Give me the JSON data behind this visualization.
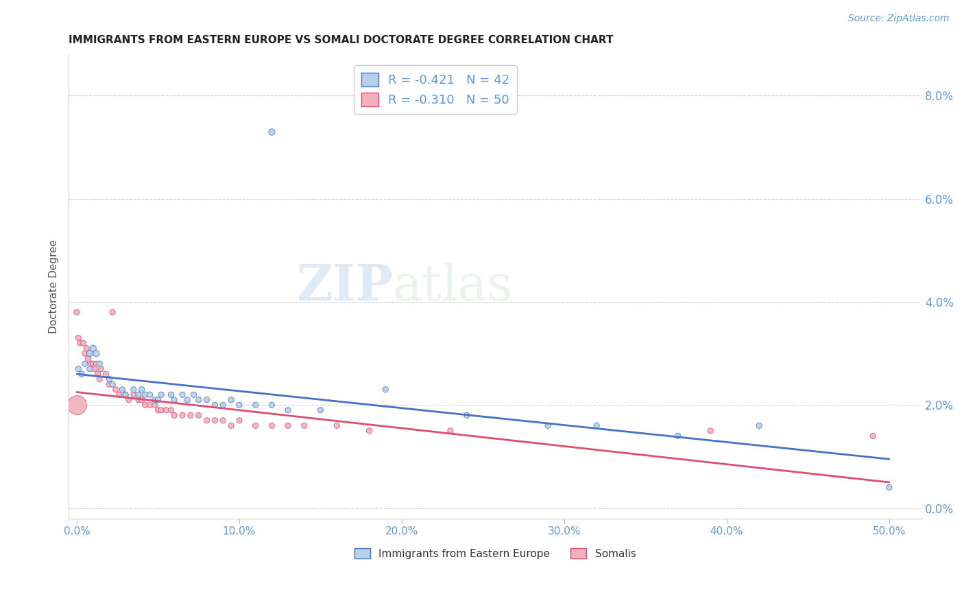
{
  "title": "IMMIGRANTS FROM EASTERN EUROPE VS SOMALI DOCTORATE DEGREE CORRELATION CHART",
  "source": "Source: ZipAtlas.com",
  "xlabel_ticks": [
    "0.0%",
    "10.0%",
    "20.0%",
    "30.0%",
    "40.0%",
    "50.0%"
  ],
  "xlabel_vals": [
    0.0,
    0.1,
    0.2,
    0.3,
    0.4,
    0.5
  ],
  "ylabel": "Doctorate Degree",
  "ylabel_ticks": [
    "0.0%",
    "2.0%",
    "4.0%",
    "6.0%",
    "8.0%"
  ],
  "ylabel_vals": [
    0.0,
    0.02,
    0.04,
    0.06,
    0.08
  ],
  "ylim": [
    -0.002,
    0.088
  ],
  "xlim": [
    -0.005,
    0.52
  ],
  "watermark_zip": "ZIP",
  "watermark_atlas": "atlas",
  "legend_blue_R": "-0.421",
  "legend_blue_N": "42",
  "legend_pink_R": "-0.310",
  "legend_pink_N": "50",
  "blue_color": "#b8d0e8",
  "pink_color": "#f0b0be",
  "line_blue": "#4472c4",
  "line_pink": "#d94f6e",
  "legend_label_blue": "Immigrants from Eastern Europe",
  "legend_label_pink": "Somalis",
  "blue_scatter": [
    [
      0.001,
      0.027
    ],
    [
      0.003,
      0.026
    ],
    [
      0.005,
      0.028
    ],
    [
      0.008,
      0.03
    ],
    [
      0.008,
      0.027
    ],
    [
      0.01,
      0.031
    ],
    [
      0.012,
      0.03
    ],
    [
      0.014,
      0.028
    ],
    [
      0.02,
      0.025
    ],
    [
      0.022,
      0.024
    ],
    [
      0.028,
      0.023
    ],
    [
      0.03,
      0.022
    ],
    [
      0.035,
      0.023
    ],
    [
      0.038,
      0.022
    ],
    [
      0.04,
      0.023
    ],
    [
      0.042,
      0.022
    ],
    [
      0.045,
      0.022
    ],
    [
      0.048,
      0.021
    ],
    [
      0.05,
      0.021
    ],
    [
      0.052,
      0.022
    ],
    [
      0.058,
      0.022
    ],
    [
      0.06,
      0.021
    ],
    [
      0.065,
      0.022
    ],
    [
      0.068,
      0.021
    ],
    [
      0.072,
      0.022
    ],
    [
      0.075,
      0.021
    ],
    [
      0.08,
      0.021
    ],
    [
      0.085,
      0.02
    ],
    [
      0.09,
      0.02
    ],
    [
      0.095,
      0.021
    ],
    [
      0.1,
      0.02
    ],
    [
      0.11,
      0.02
    ],
    [
      0.12,
      0.02
    ],
    [
      0.13,
      0.019
    ],
    [
      0.15,
      0.019
    ],
    [
      0.19,
      0.023
    ],
    [
      0.24,
      0.018
    ],
    [
      0.29,
      0.016
    ],
    [
      0.32,
      0.016
    ],
    [
      0.37,
      0.014
    ],
    [
      0.42,
      0.016
    ],
    [
      0.5,
      0.004
    ]
  ],
  "blue_sizes": [
    35,
    35,
    35,
    45,
    35,
    45,
    45,
    35,
    35,
    35,
    35,
    35,
    35,
    35,
    35,
    35,
    35,
    35,
    35,
    35,
    35,
    35,
    35,
    35,
    35,
    35,
    35,
    35,
    35,
    35,
    35,
    35,
    35,
    35,
    35,
    35,
    35,
    35,
    35,
    35,
    35,
    35
  ],
  "blue_outlier": [
    [
      0.12,
      0.073
    ]
  ],
  "blue_outlier_size": [
    45
  ],
  "pink_scatter": [
    [
      0.0,
      0.038
    ],
    [
      0.001,
      0.033
    ],
    [
      0.002,
      0.032
    ],
    [
      0.004,
      0.032
    ],
    [
      0.005,
      0.03
    ],
    [
      0.006,
      0.031
    ],
    [
      0.007,
      0.029
    ],
    [
      0.008,
      0.03
    ],
    [
      0.009,
      0.028
    ],
    [
      0.01,
      0.028
    ],
    [
      0.011,
      0.027
    ],
    [
      0.012,
      0.028
    ],
    [
      0.013,
      0.026
    ],
    [
      0.014,
      0.025
    ],
    [
      0.015,
      0.027
    ],
    [
      0.018,
      0.026
    ],
    [
      0.02,
      0.024
    ],
    [
      0.022,
      0.038
    ],
    [
      0.024,
      0.023
    ],
    [
      0.026,
      0.022
    ],
    [
      0.03,
      0.022
    ],
    [
      0.032,
      0.021
    ],
    [
      0.035,
      0.022
    ],
    [
      0.038,
      0.021
    ],
    [
      0.04,
      0.021
    ],
    [
      0.042,
      0.02
    ],
    [
      0.045,
      0.02
    ],
    [
      0.048,
      0.02
    ],
    [
      0.05,
      0.019
    ],
    [
      0.052,
      0.019
    ],
    [
      0.055,
      0.019
    ],
    [
      0.058,
      0.019
    ],
    [
      0.06,
      0.018
    ],
    [
      0.065,
      0.018
    ],
    [
      0.07,
      0.018
    ],
    [
      0.075,
      0.018
    ],
    [
      0.08,
      0.017
    ],
    [
      0.085,
      0.017
    ],
    [
      0.09,
      0.017
    ],
    [
      0.095,
      0.016
    ],
    [
      0.1,
      0.017
    ],
    [
      0.11,
      0.016
    ],
    [
      0.12,
      0.016
    ],
    [
      0.13,
      0.016
    ],
    [
      0.14,
      0.016
    ],
    [
      0.16,
      0.016
    ],
    [
      0.18,
      0.015
    ],
    [
      0.23,
      0.015
    ],
    [
      0.39,
      0.015
    ],
    [
      0.49,
      0.014
    ]
  ],
  "pink_sizes": [
    35,
    35,
    35,
    35,
    35,
    35,
    35,
    35,
    35,
    35,
    35,
    35,
    35,
    35,
    35,
    35,
    35,
    35,
    35,
    35,
    35,
    35,
    35,
    35,
    35,
    35,
    35,
    35,
    35,
    35,
    35,
    35,
    35,
    35,
    35,
    35,
    35,
    35,
    35,
    35,
    35,
    35,
    35,
    35,
    35,
    35,
    35,
    35,
    35,
    35
  ],
  "pink_large": [
    [
      0.0,
      0.02
    ]
  ],
  "pink_large_size": [
    400
  ],
  "pink_outlier": [
    [
      0.022,
      0.038
    ]
  ],
  "pink_outlier_size": [
    35
  ],
  "blue_trendline_x": [
    0.0,
    0.5
  ],
  "blue_trendline_y": [
    0.026,
    0.0095
  ],
  "pink_trendline_x": [
    0.0,
    0.5
  ],
  "pink_trendline_y": [
    0.0225,
    0.005
  ]
}
